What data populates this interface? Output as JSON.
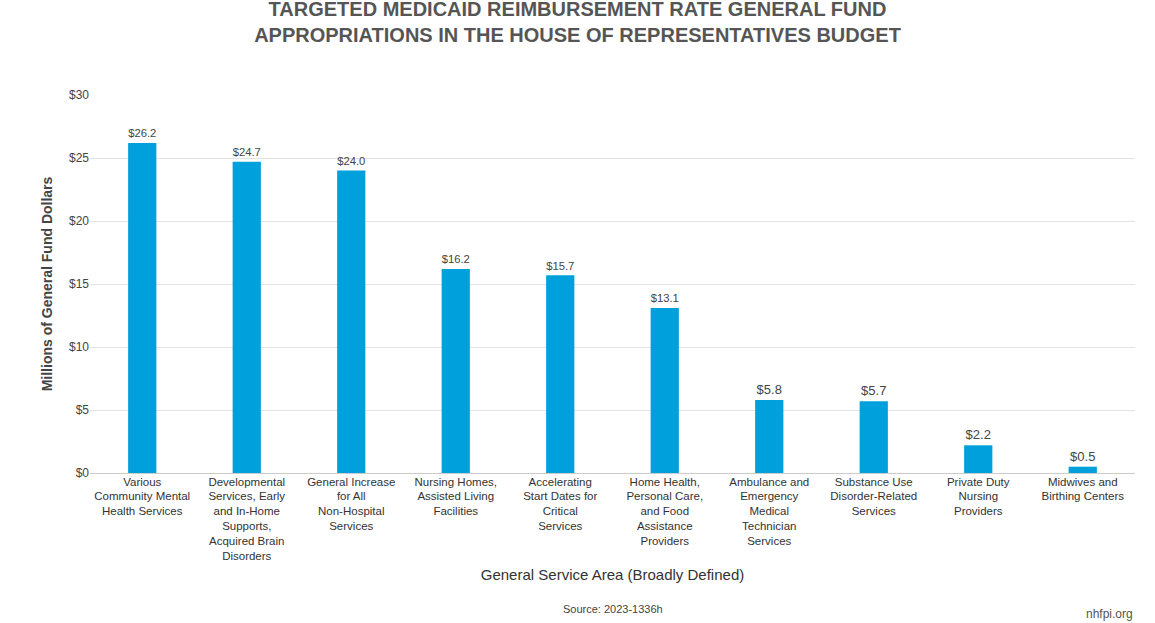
{
  "chart_data": {
    "type": "bar",
    "title": "TARGETED MEDICAID REIMBURSEMENT RATE GENERAL FUND APPROPRIATIONS IN THE HOUSE OF REPRESENTATIVES BUDGET",
    "x_label": "General Service Area (Broadly Defined)",
    "y_label": "Millions of General Fund Dollars",
    "annotations": [
      "Source: 2023-1336h",
      "nhfpi.org"
    ],
    "categories": [
      "Various Community Mental Health Services",
      "Developmental Services, Early and In-Home Supports, Acquired Brain Disorders",
      "General Increase for All Non-Hospital Services",
      "Nursing Homes, Assisted Living Facilities",
      "Accelerating Start Dates for Critical Services",
      "Home Health, Personal Care, and Food Assistance Providers",
      "Ambulance and Emergency Medical Technician Services",
      "Substance Use Disorder-Related Services",
      "Private Duty Nursing Providers",
      "Midwives and Birthing Centers"
    ],
    "values": [
      26.2,
      24.7,
      24.0,
      16.2,
      15.7,
      13.1,
      5.8,
      5.7,
      2.2,
      0.5
    ],
    "value_labels": [
      "$26.2",
      "$24.7",
      "$24.0",
      "$16.2",
      "$15.7",
      "$13.1",
      "$5.8",
      "$5.7",
      "$2.2",
      "$0.5"
    ],
    "data_labels": true,
    "color": "#00a0dc",
    "ylim": [
      0,
      30
    ],
    "yticks": [
      {
        "value": 0,
        "label": "$0"
      },
      {
        "value": 5,
        "label": "$5"
      },
      {
        "value": 10,
        "label": "$10"
      },
      {
        "value": 15,
        "label": "$15"
      },
      {
        "value": 20,
        "label": "$20"
      },
      {
        "value": 25,
        "label": "$25"
      },
      {
        "value": 30,
        "label": "$30"
      }
    ],
    "grid": true
  }
}
